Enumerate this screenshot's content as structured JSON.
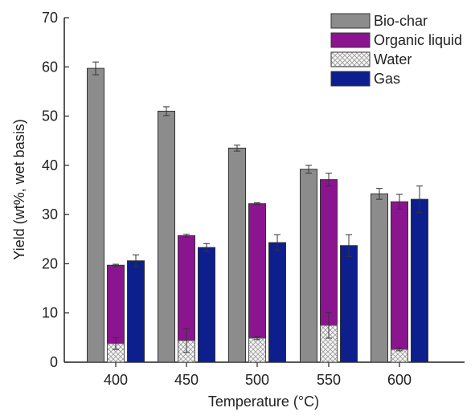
{
  "chart_data": {
    "type": "bar",
    "title": "",
    "xlabel": "Temperature (°C)",
    "ylabel": "Yield (wt%, wet basis)",
    "ylim": [
      0,
      70
    ],
    "yticks": [
      0,
      10,
      20,
      30,
      40,
      50,
      60,
      70
    ],
    "categories": [
      "400",
      "450",
      "500",
      "550",
      "600"
    ],
    "legend_position": "top-right",
    "grid": false,
    "series": [
      {
        "name": "Bio-char",
        "color": "#8c8c8c",
        "values": [
          59.7,
          51.0,
          43.5,
          39.2,
          34.2
        ],
        "error": [
          1.3,
          0.9,
          0.6,
          0.8,
          1.1
        ]
      },
      {
        "name": "Organic liquid",
        "color": "#8b158f",
        "values": [
          19.7,
          25.7,
          32.2,
          37.1,
          32.6
        ],
        "error": [
          0.2,
          0.3,
          0.2,
          1.3,
          1.5
        ]
      },
      {
        "name": "Water",
        "color": "#f2f2f2",
        "pattern": "crosshatch",
        "values": [
          3.8,
          4.4,
          4.9,
          7.5,
          2.6
        ],
        "error": [
          1.2,
          2.4,
          0.3,
          2.6,
          0.3
        ]
      },
      {
        "name": "Gas",
        "color": "#0d1f8c",
        "values": [
          20.6,
          23.3,
          24.3,
          23.7,
          33.1
        ],
        "error": [
          1.2,
          0.8,
          1.6,
          2.2,
          2.7
        ]
      }
    ]
  }
}
